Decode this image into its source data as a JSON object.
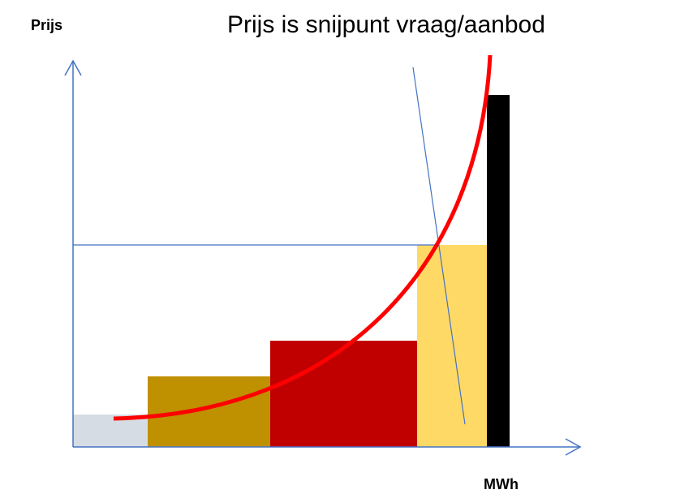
{
  "y_axis_label": "Prijs",
  "title": "Prijs is snijpunt vraag/aanbod",
  "x_axis_label": "MWh"
}
